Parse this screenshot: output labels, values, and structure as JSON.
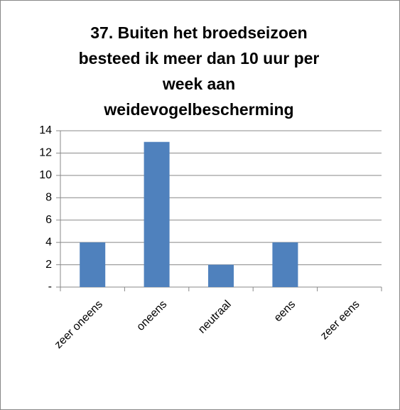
{
  "chart_data": {
    "type": "bar",
    "title": "37. Buiten het broedseizoen\nbesteed ik meer dan 10 uur per\nweek aan\nweidevogelbescherming",
    "categories": [
      "zeer oneens",
      "oneens",
      "neutraal",
      "eens",
      "zeer eens"
    ],
    "values": [
      4,
      13,
      2,
      4,
      0
    ],
    "color": "#4f81bd",
    "ylim": [
      0,
      14
    ],
    "yticks": [
      {
        "value": 0,
        "label": "-"
      },
      2,
      4,
      6,
      8,
      10,
      12,
      14
    ],
    "grid": true
  }
}
